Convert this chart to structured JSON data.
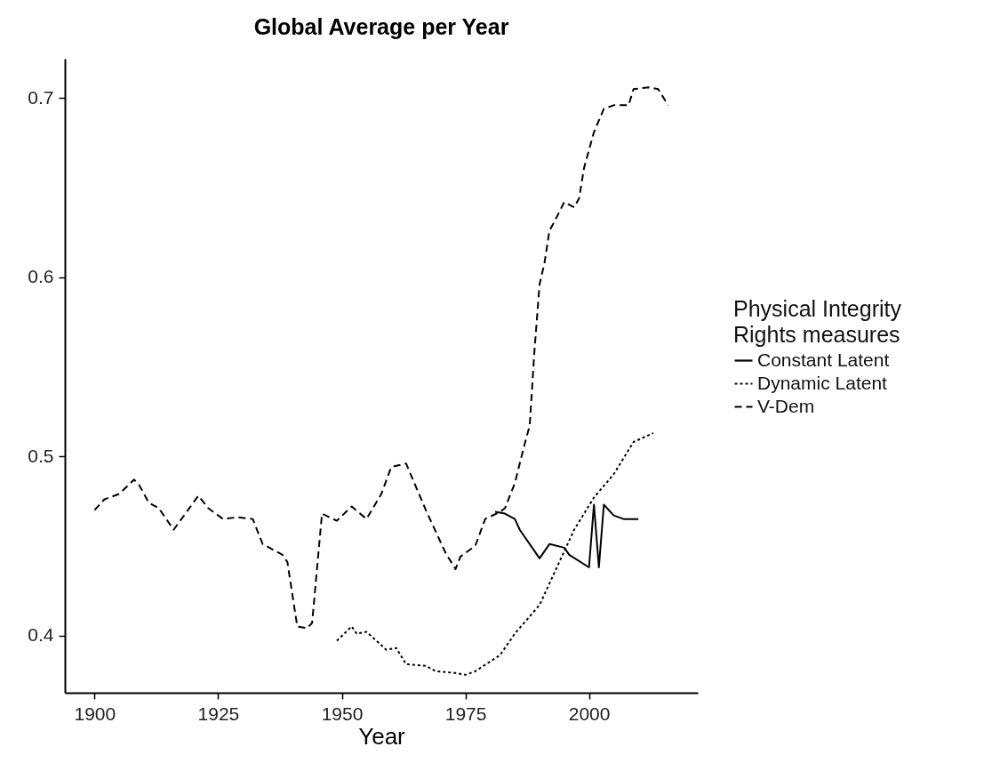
{
  "chart_data": {
    "type": "line",
    "title": "Global Average per Year",
    "xlabel": "Year",
    "legend_title": "Physical Integrity\n Rights measures",
    "legend": "right",
    "grid": false,
    "xlim": [
      1894,
      2022
    ],
    "xticks": [
      1900,
      1925,
      1950,
      1975,
      2000
    ],
    "ylim": [
      0.368,
      0.722
    ],
    "yticks": [
      0.4,
      0.5,
      0.6,
      0.7
    ],
    "series": [
      {
        "name": "Constant Latent",
        "color": "#000000",
        "line_style": "solid",
        "x": [
          1981,
          1983,
          1985,
          1986,
          1990,
          1992,
          1995,
          1996,
          2000,
          2001,
          2002,
          2003,
          2005,
          2007,
          2010
        ],
        "values": [
          0.469,
          0.468,
          0.465,
          0.459,
          0.443,
          0.451,
          0.449,
          0.445,
          0.438,
          0.473,
          0.438,
          0.473,
          0.467,
          0.465,
          0.465
        ]
      },
      {
        "name": "Dynamic Latent",
        "color": "#000000",
        "line_style": "dotted",
        "x": [
          1949,
          1952,
          1953,
          1955,
          1959,
          1961,
          1963,
          1967,
          1969,
          1973,
          1975,
          1977,
          1982,
          1985,
          1990,
          1994,
          1997,
          2001,
          2005,
          2009,
          2013
        ],
        "values": [
          0.397,
          0.405,
          0.401,
          0.402,
          0.392,
          0.393,
          0.384,
          0.383,
          0.38,
          0.379,
          0.378,
          0.38,
          0.389,
          0.401,
          0.417,
          0.441,
          0.459,
          0.477,
          0.49,
          0.508,
          0.513
        ]
      },
      {
        "name": "V-Dem",
        "color": "#000000",
        "line_style": "dashed",
        "x": [
          1900,
          1902,
          1905,
          1908,
          1909,
          1911,
          1913,
          1916,
          1921,
          1923,
          1926,
          1929,
          1932,
          1934,
          1938,
          1939,
          1941,
          1943,
          1944,
          1946,
          1949,
          1952,
          1955,
          1958,
          1960,
          1963,
          1967,
          1971,
          1973,
          1974,
          1977,
          1979,
          1982,
          1983,
          1985,
          1987,
          1988,
          1989,
          1990,
          1991,
          1992,
          1993,
          1995,
          1997,
          1998,
          1999,
          2001,
          2003,
          2005,
          2008,
          2009,
          2012,
          2014,
          2016
        ],
        "values": [
          0.47,
          0.476,
          0.479,
          0.487,
          0.484,
          0.474,
          0.471,
          0.459,
          0.478,
          0.471,
          0.465,
          0.466,
          0.465,
          0.451,
          0.445,
          0.441,
          0.405,
          0.404,
          0.407,
          0.468,
          0.464,
          0.472,
          0.465,
          0.479,
          0.494,
          0.496,
          0.47,
          0.446,
          0.437,
          0.444,
          0.45,
          0.465,
          0.469,
          0.471,
          0.485,
          0.507,
          0.517,
          0.56,
          0.596,
          0.608,
          0.626,
          0.631,
          0.642,
          0.639,
          0.644,
          0.661,
          0.681,
          0.694,
          0.696,
          0.696,
          0.705,
          0.706,
          0.705,
          0.696
        ]
      }
    ]
  }
}
